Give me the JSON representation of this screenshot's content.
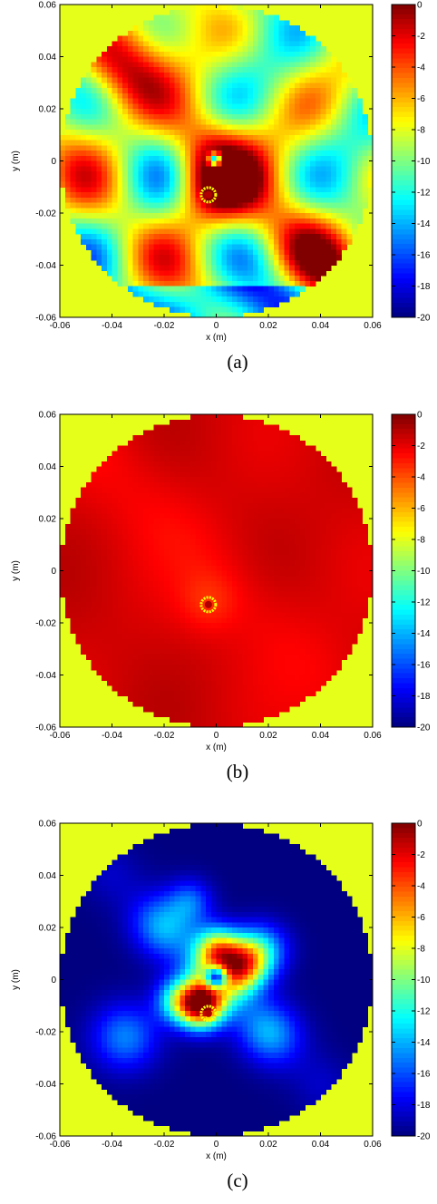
{
  "chart_data": [
    {
      "type": "heatmap",
      "caption": "(a)",
      "xlabel": "x (m)",
      "ylabel": "y (m)",
      "xlim": [
        -0.06,
        0.06
      ],
      "ylim": [
        -0.06,
        0.06
      ],
      "x_ticks": [
        "-0.06",
        "-0.04",
        "-0.02",
        "0",
        "0.02",
        "0.04",
        "0.06"
      ],
      "y_ticks": [
        "0.06",
        "0.04",
        "0.02",
        "0",
        "-0.02",
        "-0.04",
        "-0.06"
      ],
      "colorbar": {
        "range": [
          -20,
          0
        ],
        "ticks": [
          "0",
          "-2",
          "-4",
          "-6",
          "-8",
          "-10",
          "-12",
          "-14",
          "-16",
          "-18",
          "-20"
        ]
      },
      "background_value": -8,
      "domain_radius": 0.06,
      "marker": {
        "shape": "circle",
        "color": "#ffff00",
        "x": -0.003,
        "y": -0.013
      },
      "description_values": {
        "field": "mixed",
        "base": -9
      }
    },
    {
      "type": "heatmap",
      "caption": "(b)",
      "xlabel": "x (m)",
      "ylabel": "y (m)",
      "xlim": [
        -0.06,
        0.06
      ],
      "ylim": [
        -0.06,
        0.06
      ],
      "x_ticks": [
        "-0.06",
        "-0.04",
        "-0.02",
        "0",
        "0.02",
        "0.04",
        "0.06"
      ],
      "y_ticks": [
        "0.06",
        "0.04",
        "0.02",
        "0",
        "-0.02",
        "-0.04",
        "-0.06"
      ],
      "colorbar": {
        "range": [
          -20,
          0
        ],
        "ticks": [
          "0",
          "-2",
          "-4",
          "-6",
          "-8",
          "-10",
          "-12",
          "-14",
          "-16",
          "-18",
          "-20"
        ]
      },
      "background_value": -8,
      "domain_radius": 0.06,
      "marker": {
        "shape": "circle",
        "color": "#ffff00",
        "x": -0.003,
        "y": -0.013
      },
      "description_values": {
        "field": "high",
        "base": -2
      }
    },
    {
      "type": "heatmap",
      "caption": "(c)",
      "xlabel": "x (m)",
      "ylabel": "y (m)",
      "xlim": [
        -0.06,
        0.06
      ],
      "ylim": [
        -0.06,
        0.06
      ],
      "x_ticks": [
        "-0.06",
        "-0.04",
        "-0.02",
        "0",
        "0.02",
        "0.04",
        "0.06"
      ],
      "y_ticks": [
        "0.06",
        "0.04",
        "0.02",
        "0",
        "-0.02",
        "-0.04",
        "-0.06"
      ],
      "colorbar": {
        "range": [
          -20,
          0
        ],
        "ticks": [
          "0",
          "-2",
          "-4",
          "-6",
          "-8",
          "-10",
          "-12",
          "-14",
          "-16",
          "-18",
          "-20"
        ]
      },
      "background_value": -8,
      "domain_radius": 0.06,
      "marker": {
        "shape": "circle",
        "color": "#ffff00",
        "x": -0.003,
        "y": -0.013
      },
      "description_values": {
        "field": "low",
        "base": -20
      }
    }
  ]
}
